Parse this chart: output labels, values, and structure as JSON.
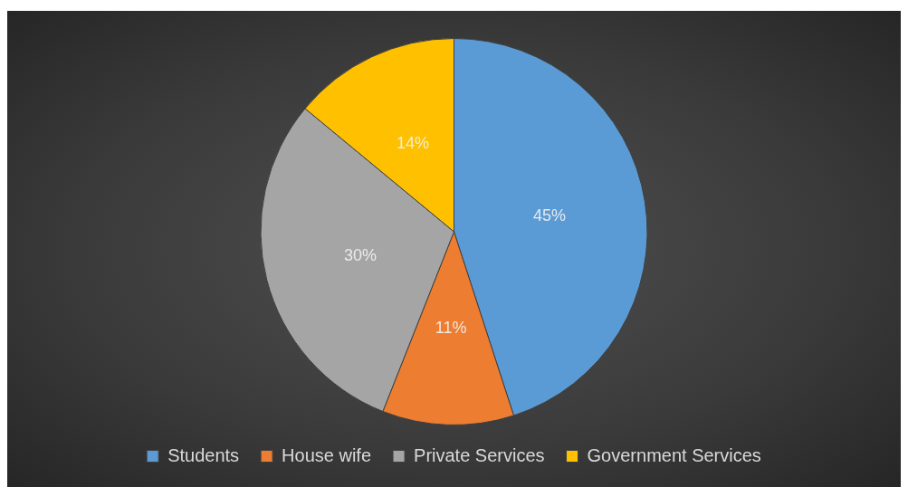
{
  "chart_data": {
    "type": "pie",
    "categories": [
      "Students",
      "House wife",
      "Private Services",
      "Government Services"
    ],
    "values": [
      45,
      11,
      30,
      14
    ],
    "colors": [
      "#5b9bd5",
      "#ed7d31",
      "#a5a5a5",
      "#ffc000"
    ],
    "value_labels": [
      "45%",
      "11%",
      "30%",
      "14%"
    ],
    "legend": "bottom"
  }
}
